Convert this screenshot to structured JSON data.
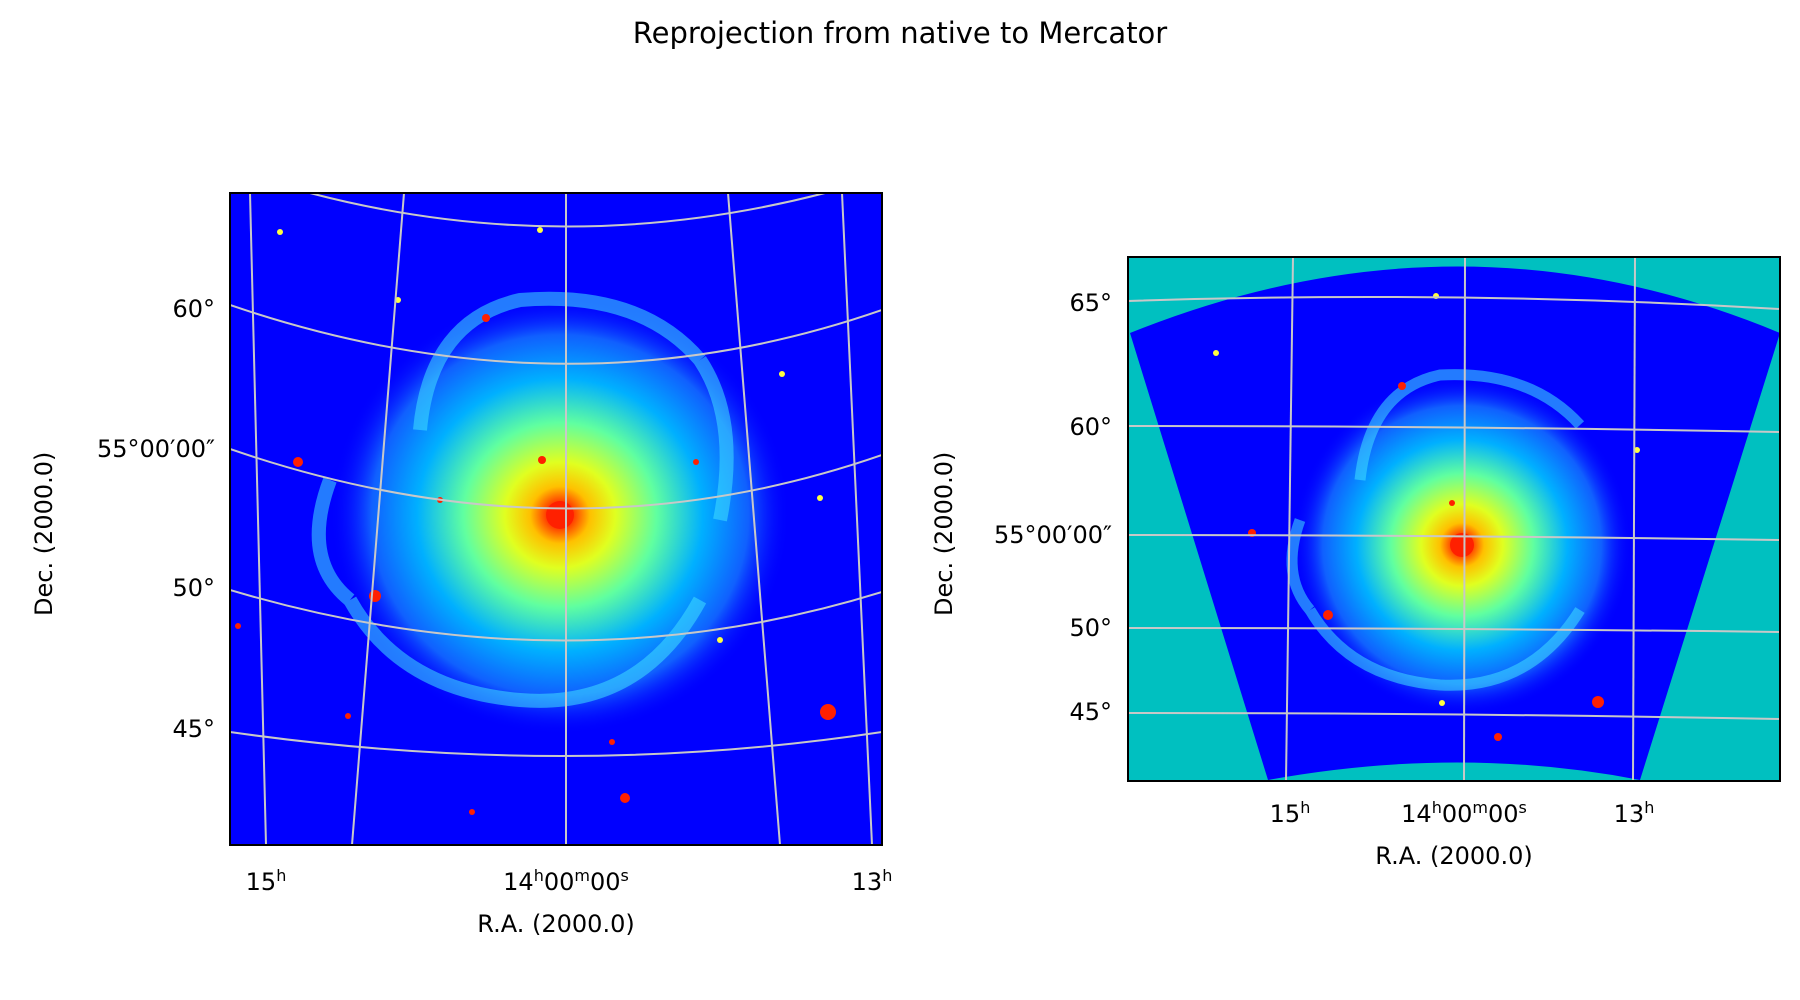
{
  "figure": {
    "title": "Reprojection from native to Mercator"
  },
  "chart_data": [
    {
      "type": "heatmap",
      "panel": "left",
      "projection": "native",
      "colormap": "jet",
      "background_color": "#0000ff",
      "grid": true,
      "grid_color": "#c8c8c8",
      "xlabel": "R.A. (2000.0)",
      "ylabel": "Dec. (2000.0)",
      "x_ticks": [
        {
          "label": "15",
          "unit": "h"
        },
        {
          "label": "14",
          "unit": "h",
          "label2": "00",
          "unit2": "m",
          "label3": "00",
          "unit3": "s"
        },
        {
          "label": "13",
          "unit": "h"
        }
      ],
      "y_ticks": [
        "60°",
        "55°00′00″",
        "50°",
        "45°"
      ],
      "image_content": "spiral galaxy intensity map"
    },
    {
      "type": "heatmap",
      "panel": "right",
      "projection": "Mercator",
      "colormap": "jet",
      "background_color": "#00c0c0",
      "grid": true,
      "grid_color": "#c8c8c8",
      "xlabel": "R.A. (2000.0)",
      "ylabel": "Dec. (2000.0)",
      "x_ticks": [
        {
          "label": "15",
          "unit": "h"
        },
        {
          "label": "14",
          "unit": "h",
          "label2": "00",
          "unit2": "m",
          "label3": "00",
          "unit3": "s"
        },
        {
          "label": "13",
          "unit": "h"
        }
      ],
      "y_ticks": [
        "65°",
        "60°",
        "55°00′00″",
        "50°",
        "45°"
      ],
      "image_content": "spiral galaxy intensity map"
    }
  ]
}
